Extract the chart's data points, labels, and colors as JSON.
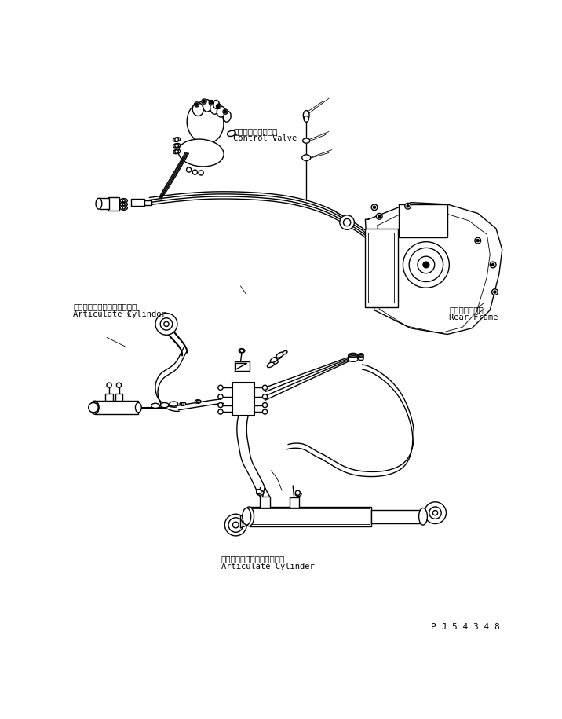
{
  "background_color": "#ffffff",
  "line_color": "#000000",
  "lw": 1.0,
  "tlw": 0.6,
  "label_top_jp": "コントロールバルブ",
  "label_top_en": "Control Valve",
  "label_left_jp": "アーティキュレートシリンダ",
  "label_left_en": "Articulate Cylinder",
  "label_right_jp": "リヤーフレーム",
  "label_right_en": "Rear Frame",
  "label_bottom_jp": "アーティキュレートシリンダ",
  "label_bottom_en": "Articulate Cylinder",
  "watermark": "P J 5 4 3 4 8",
  "fig_width": 7.16,
  "fig_height": 9.15,
  "dpi": 100
}
